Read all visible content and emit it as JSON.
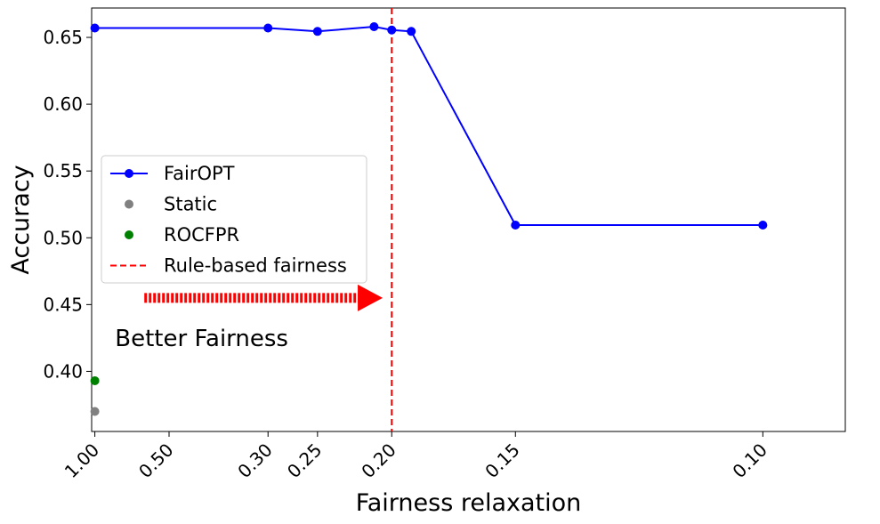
{
  "chart_data": {
    "type": "line",
    "xlabel": "Fairness relaxation",
    "ylabel": "Accuracy",
    "x_ticks": [
      {
        "value": 1.0,
        "label": "1.00"
      },
      {
        "value": 0.5,
        "label": "0.50"
      },
      {
        "value": 0.3,
        "label": "0.30"
      },
      {
        "value": 0.25,
        "label": "0.25"
      },
      {
        "value": 0.2,
        "label": "0.20"
      },
      {
        "value": 0.15,
        "label": "0.15"
      },
      {
        "value": 0.1,
        "label": "0.10"
      }
    ],
    "y_ticks": [
      {
        "value": 0.4,
        "label": "0.40"
      },
      {
        "value": 0.45,
        "label": "0.45"
      },
      {
        "value": 0.5,
        "label": "0.50"
      },
      {
        "value": 0.55,
        "label": "0.55"
      },
      {
        "value": 0.6,
        "label": "0.60"
      },
      {
        "value": 0.65,
        "label": "0.65"
      }
    ],
    "xlim": [
      1.045,
      0.09
    ],
    "ylim": [
      0.355,
      0.672
    ],
    "series": [
      {
        "name": "FairOPT",
        "kind": "line-marker",
        "color": "#0000ff",
        "points": [
          {
            "x": 1.0,
            "y": 0.657
          },
          {
            "x": 0.3,
            "y": 0.657
          },
          {
            "x": 0.25,
            "y": 0.6545
          },
          {
            "x": 0.21,
            "y": 0.658
          },
          {
            "x": 0.2,
            "y": 0.6555
          },
          {
            "x": 0.19,
            "y": 0.6545
          },
          {
            "x": 0.15,
            "y": 0.5095
          },
          {
            "x": 0.1,
            "y": 0.5095
          }
        ]
      },
      {
        "name": "Static",
        "kind": "marker",
        "color": "#808080",
        "points": [
          {
            "x": 1.0,
            "y": 0.37
          }
        ]
      },
      {
        "name": "ROCFPR",
        "kind": "marker",
        "color": "#008000",
        "points": [
          {
            "x": 1.0,
            "y": 0.393
          }
        ]
      },
      {
        "name": "Rule-based fairness",
        "kind": "vline",
        "color": "#ff0000",
        "x": 0.2
      }
    ],
    "annotation": {
      "text": "Better Fairness",
      "arrow_from_x": 0.6,
      "arrow_to_x": 0.205,
      "arrow_y": 0.455,
      "text_x": 0.41,
      "text_y": 0.425,
      "color": "#ff0000"
    },
    "legend_position": "center-left",
    "grid": false
  }
}
